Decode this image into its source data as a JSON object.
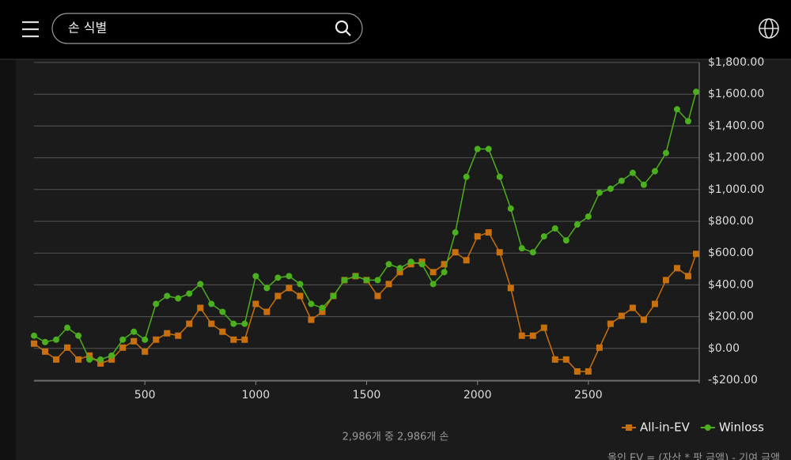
{
  "header": {
    "search_placeholder": "손 식별"
  },
  "chart_data": {
    "type": "line",
    "x": [
      0,
      50,
      100,
      150,
      200,
      250,
      300,
      350,
      400,
      450,
      500,
      550,
      600,
      650,
      700,
      750,
      800,
      850,
      900,
      950,
      1000,
      1050,
      1100,
      1150,
      1200,
      1250,
      1300,
      1350,
      1400,
      1450,
      1500,
      1550,
      1600,
      1650,
      1700,
      1750,
      1800,
      1850,
      1900,
      1950,
      2000,
      2050,
      2100,
      2150,
      2200,
      2250,
      2300,
      2350,
      2400,
      2450,
      2500,
      2550,
      2600,
      2650,
      2700,
      2750,
      2800,
      2850,
      2900,
      2950,
      2986
    ],
    "series": [
      {
        "name": "All-in-EV",
        "color": "#c8700f",
        "marker": "square",
        "values": [
          30,
          -20,
          -70,
          5,
          -70,
          -45,
          -95,
          -70,
          5,
          45,
          -20,
          55,
          95,
          80,
          155,
          255,
          155,
          105,
          55,
          55,
          280,
          230,
          330,
          380,
          330,
          180,
          230,
          330,
          430,
          455,
          430,
          330,
          405,
          480,
          530,
          545,
          480,
          530,
          605,
          555,
          705,
          730,
          605,
          380,
          80,
          80,
          130,
          -70,
          -70,
          -145,
          -145,
          5,
          155,
          205,
          255,
          180,
          280,
          430,
          505,
          455,
          595
        ]
      },
      {
        "name": "Winloss",
        "color": "#4caf1f",
        "marker": "circle",
        "values": [
          80,
          40,
          55,
          130,
          80,
          -70,
          -70,
          -45,
          55,
          105,
          55,
          280,
          330,
          315,
          345,
          405,
          280,
          230,
          155,
          155,
          455,
          380,
          445,
          455,
          405,
          280,
          255,
          330,
          430,
          455,
          430,
          430,
          530,
          505,
          545,
          530,
          405,
          480,
          730,
          1080,
          1255,
          1255,
          1080,
          880,
          630,
          605,
          705,
          755,
          680,
          780,
          830,
          980,
          1005,
          1055,
          1105,
          1030,
          1115,
          1230,
          1505,
          1430,
          1615
        ]
      }
    ],
    "xlim": [
      0,
      3000
    ],
    "xticks": [
      500,
      1000,
      1500,
      2000,
      2500
    ],
    "ylim": [
      -200,
      1800
    ],
    "yticks": [
      {
        "value": -200,
        "label": "-$200.00"
      },
      {
        "value": 0,
        "label": "$0.00"
      },
      {
        "value": 200,
        "label": "$200.00"
      },
      {
        "value": 400,
        "label": "$400.00"
      },
      {
        "value": 600,
        "label": "$600.00"
      },
      {
        "value": 800,
        "label": "$800.00"
      },
      {
        "value": 1000,
        "label": "$1,000.00"
      },
      {
        "value": 1200,
        "label": "$1,200.00"
      },
      {
        "value": 1400,
        "label": "$1,400.00"
      },
      {
        "value": 1600,
        "label": "$1,600.00"
      },
      {
        "value": 1800,
        "label": "$1,800.00"
      }
    ],
    "grid": true,
    "legend": "bottom-right"
  },
  "footer": {
    "count": "2,986개 중 2,986개 손",
    "formula": "올인 EV = (자산 * 팟 금액) - 기여 금액"
  }
}
